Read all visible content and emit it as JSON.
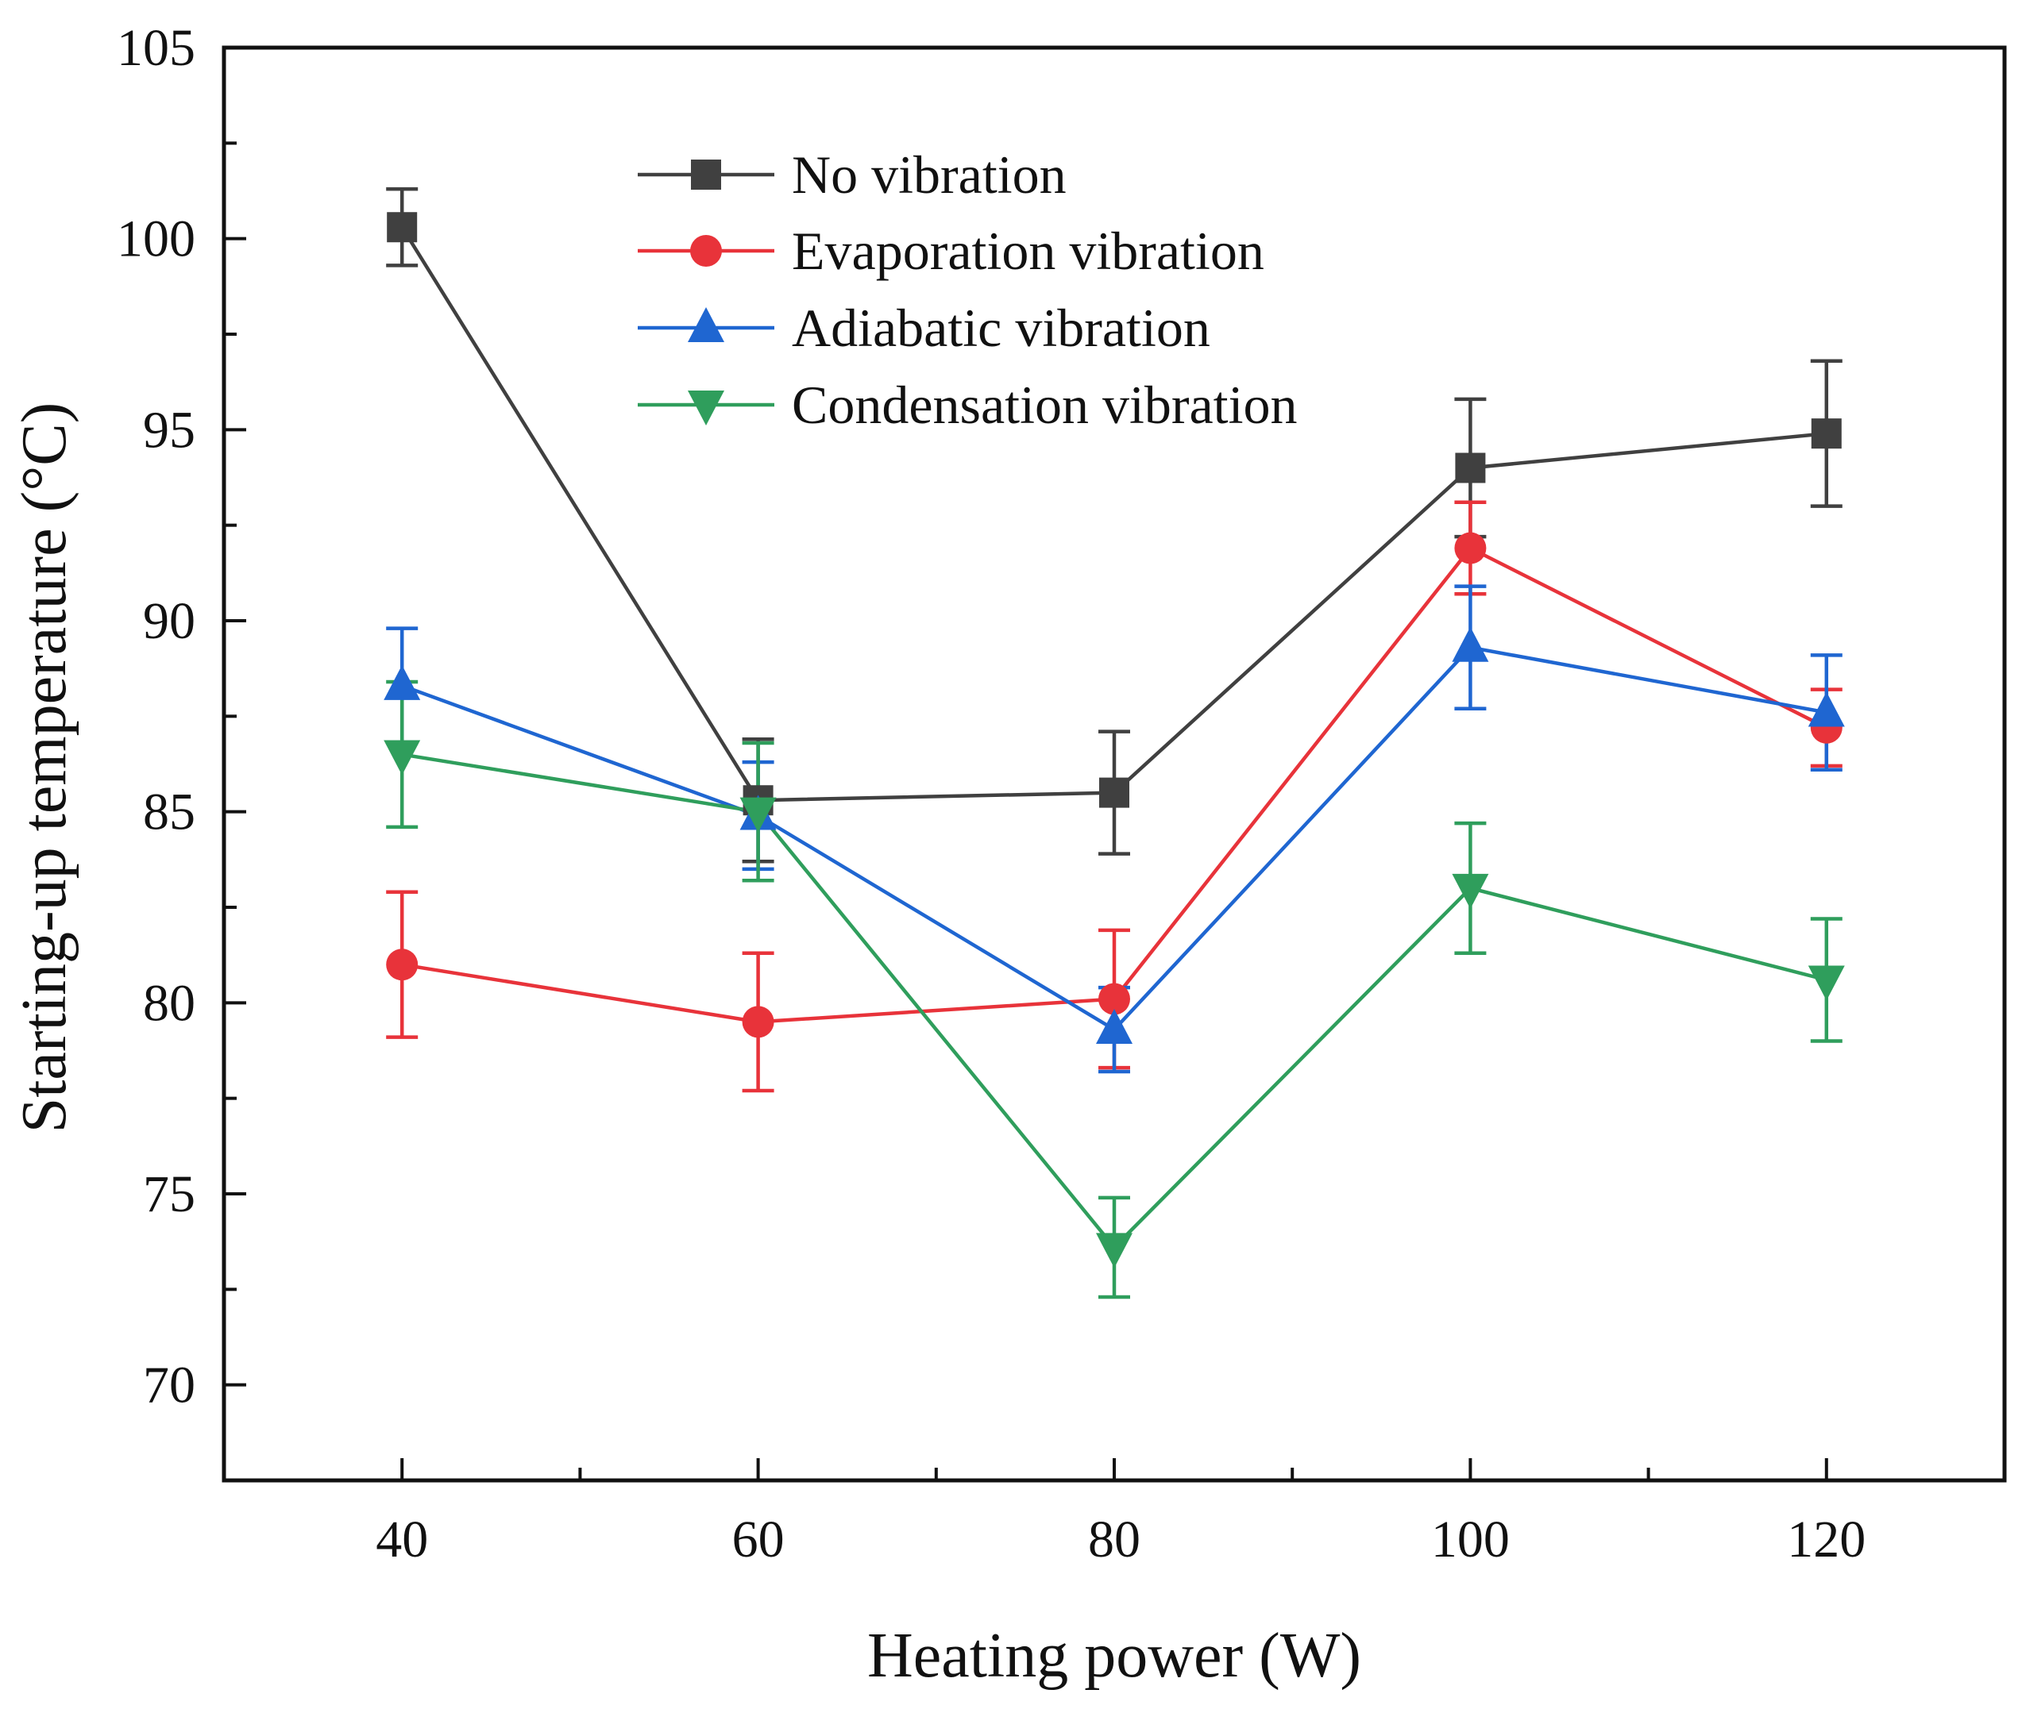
{
  "chart_data": {
    "type": "line",
    "title": "",
    "xlabel": "Heating power (W)",
    "ylabel": "Starting-up temperature (°C)",
    "xlim": [
      30,
      130
    ],
    "ylim": [
      67.5,
      105
    ],
    "x": [
      40,
      60,
      80,
      100,
      120
    ],
    "x_ticks": [
      "40",
      "60",
      "80",
      "100",
      "120"
    ],
    "y_ticks": [
      "70",
      "75",
      "80",
      "85",
      "90",
      "95",
      "100",
      "105"
    ],
    "legend_position": "top-center",
    "series": [
      {
        "name": "No vibration",
        "marker": "square",
        "color": "#404040",
        "values": [
          100.3,
          85.3,
          85.5,
          94.0,
          94.9
        ],
        "errors": [
          1.0,
          1.6,
          1.6,
          1.8,
          1.9
        ]
      },
      {
        "name": "Evaporation vibration",
        "marker": "circle",
        "color": "#e8333a",
        "values": [
          81.0,
          79.5,
          80.1,
          91.9,
          87.2
        ],
        "errors": [
          1.9,
          1.8,
          1.8,
          1.2,
          1.0
        ]
      },
      {
        "name": "Adiabatic vibration",
        "marker": "triangle-up",
        "color": "#1f66d1",
        "values": [
          88.3,
          84.9,
          79.3,
          89.3,
          87.6
        ],
        "errors": [
          1.5,
          1.4,
          1.1,
          1.6,
          1.5
        ]
      },
      {
        "name": "Condensation vibration",
        "marker": "triangle-down",
        "color": "#2f9e5c",
        "values": [
          86.5,
          85.0,
          73.6,
          83.0,
          80.6
        ],
        "errors": [
          1.9,
          1.8,
          1.3,
          1.7,
          1.6
        ]
      }
    ]
  }
}
